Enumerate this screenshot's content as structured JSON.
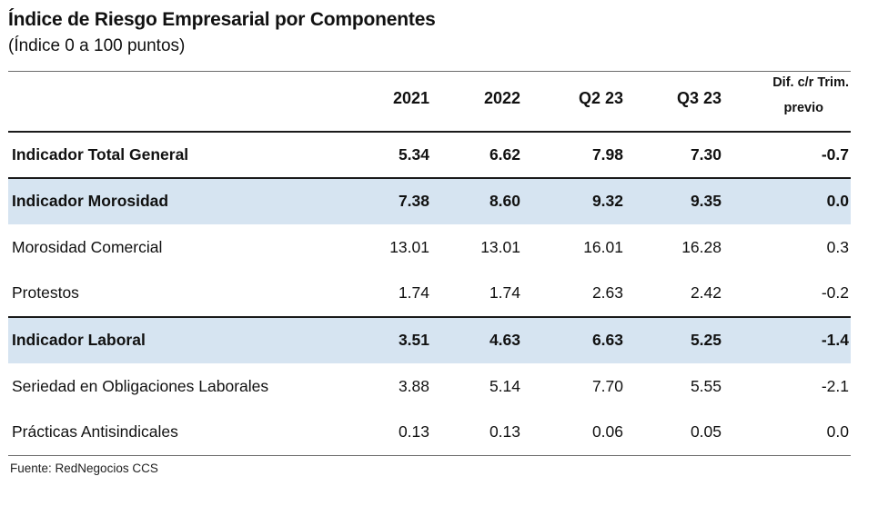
{
  "title": "Índice de Riesgo Empresarial por Componentes",
  "subtitle": "(Índice 0 a 100 puntos)",
  "source": "Fuente: RedNegocios CCS",
  "colors": {
    "highlight_row": "#d6e4f1",
    "rule": "#1a1a1a"
  },
  "table": {
    "columns": [
      "2021",
      "2022",
      "Q2 23",
      "Q3 23"
    ],
    "diff_header": {
      "line1": "Dif. c/r Trim.",
      "line2": "previo"
    },
    "rows": [
      {
        "label": "Indicador Total General",
        "values": [
          "5.34",
          "6.62",
          "7.98",
          "7.30",
          "-0.7"
        ]
      },
      {
        "label": "Indicador Morosidad",
        "values": [
          "7.38",
          "8.60",
          "9.32",
          "9.35",
          "0.0"
        ]
      },
      {
        "label": "Morosidad Comercial",
        "values": [
          "13.01",
          "13.01",
          "16.01",
          "16.28",
          "0.3"
        ]
      },
      {
        "label": "Protestos",
        "values": [
          "1.74",
          "1.74",
          "2.63",
          "2.42",
          "-0.2"
        ]
      },
      {
        "label": "Indicador Laboral",
        "values": [
          "3.51",
          "4.63",
          "6.63",
          "5.25",
          "-1.4"
        ]
      },
      {
        "label": "Seriedad en Obligaciones Laborales",
        "values": [
          "3.88",
          "5.14",
          "7.70",
          "5.55",
          "-2.1"
        ]
      },
      {
        "label": "Prácticas Antisindicales",
        "values": [
          "0.13",
          "0.13",
          "0.06",
          "0.05",
          "0.0"
        ]
      }
    ]
  },
  "chart_data": {
    "type": "table",
    "title": "Índice de Riesgo Empresarial por Componentes (Índice 0 a 100 puntos)",
    "columns": [
      "Componente",
      "2021",
      "2022",
      "Q2 23",
      "Q3 23",
      "Dif. c/r Trim. previo"
    ],
    "rows": [
      [
        "Indicador Total General",
        5.34,
        6.62,
        7.98,
        7.3,
        -0.7
      ],
      [
        "Indicador Morosidad",
        7.38,
        8.6,
        9.32,
        9.35,
        0.0
      ],
      [
        "Morosidad Comercial",
        13.01,
        13.01,
        16.01,
        16.28,
        0.3
      ],
      [
        "Protestos",
        1.74,
        1.74,
        2.63,
        2.42,
        -0.2
      ],
      [
        "Indicador Laboral",
        3.51,
        4.63,
        6.63,
        5.25,
        -1.4
      ],
      [
        "Seriedad en Obligaciones Laborales",
        3.88,
        5.14,
        7.7,
        5.55,
        -2.1
      ],
      [
        "Prácticas Antisindicales",
        0.13,
        0.13,
        0.06,
        0.05,
        0.0
      ]
    ],
    "highlighted_rows": [
      "Indicador Morosidad",
      "Indicador Laboral"
    ],
    "bold_rows": [
      "Indicador Total General",
      "Indicador Morosidad",
      "Indicador Laboral"
    ],
    "source": "Fuente: RedNegocios CCS"
  }
}
